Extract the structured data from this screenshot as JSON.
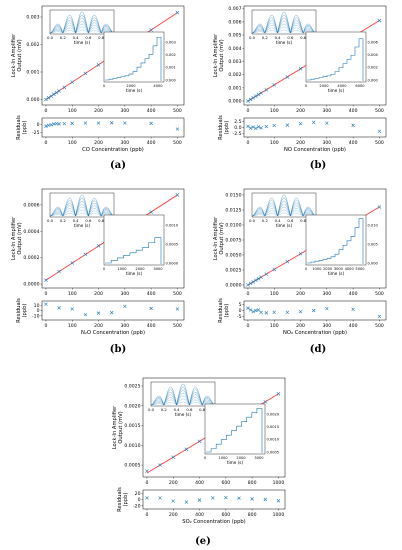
{
  "chart_data": [
    {
      "id": "a",
      "type": "scatter",
      "caption": "(a)",
      "ylabel_lines": [
        "Lock-In Amplifier",
        "Output (mV)"
      ],
      "xlabel": "CO Concentration (ppb)",
      "xticks": [
        "0",
        "100",
        "200",
        "300",
        "400",
        "500"
      ],
      "yticks": [
        "0.000",
        "0.001",
        "0.002",
        "0.003"
      ],
      "xlim": [
        -15,
        525
      ],
      "ylim": [
        -0.0002,
        0.0034
      ],
      "points_x": [
        0,
        10,
        20,
        30,
        40,
        50,
        70,
        100,
        150,
        200,
        250,
        300,
        400,
        500
      ],
      "points_y": [
        0.0,
        6e-05,
        0.00012,
        0.00019,
        0.00025,
        0.00031,
        0.00044,
        0.00063,
        0.00095,
        0.00126,
        0.00158,
        0.0019,
        0.00253,
        0.00316
      ],
      "fit": [
        [
          0,
          0.0
        ],
        [
          500,
          0.00316
        ]
      ],
      "residuals_ylabel_lines": [
        "Residuals",
        "(ppb)"
      ],
      "residuals_yticks": [
        "0",
        "-25"
      ],
      "residuals_ylim": [
        -40,
        20
      ],
      "residuals": [
        -6,
        -3,
        -1,
        1,
        2,
        1,
        2,
        3,
        4,
        4,
        5,
        4,
        3,
        -15
      ],
      "inset_trace": {
        "xlabel": "time (s)",
        "xticks": [
          "0.0",
          "0.2",
          "0.4",
          "0.6",
          "0.8",
          "1.0"
        ]
      },
      "inset_steps": {
        "xlabel": "time (s)",
        "xticks": [
          "0",
          "2000",
          "4000"
        ],
        "yticks": [
          "0.000",
          "0.001",
          "0.002",
          "0.003"
        ],
        "ymax": 0.0034
      }
    },
    {
      "id": "b1",
      "type": "scatter",
      "caption": "(b)",
      "ylabel_lines": [
        "Lock-In Amplifier",
        "Output (mV)"
      ],
      "xlabel": "NO Concentration (ppb)",
      "xticks": [
        "0",
        "100",
        "200",
        "300",
        "400",
        "500"
      ],
      "yticks": [
        "0.000",
        "0.001",
        "0.002",
        "0.003",
        "0.004",
        "0.005",
        "0.006",
        "0.007"
      ],
      "xlim": [
        -15,
        525
      ],
      "ylim": [
        -0.0003,
        0.0072
      ],
      "points_x": [
        0,
        10,
        20,
        30,
        40,
        50,
        70,
        100,
        150,
        200,
        250,
        300,
        400,
        500
      ],
      "points_y": [
        0.0,
        0.00012,
        0.00024,
        0.00037,
        0.00049,
        0.00061,
        0.00085,
        0.00122,
        0.00183,
        0.00244,
        0.00305,
        0.00366,
        0.00488,
        0.0061
      ],
      "fit": [
        [
          0,
          0.0
        ],
        [
          500,
          0.0061
        ]
      ],
      "residuals_ylabel_lines": [
        "Residuals",
        "(ppb)"
      ],
      "residuals_yticks": [
        "2.5",
        "0.0",
        "-2.5"
      ],
      "residuals_ylim": [
        -4,
        4
      ],
      "residuals": [
        0.5,
        -0.3,
        0.2,
        -0.4,
        0.3,
        -0.2,
        0.4,
        0.8,
        1.0,
        1.6,
        2.2,
        1.8,
        0.9,
        -1.6
      ],
      "inset_trace": {
        "xlabel": "time (s)",
        "xticks": [
          "0.0",
          "0.2",
          "0.4",
          "0.6",
          "0.8",
          "1.0"
        ]
      },
      "inset_steps": {
        "xlabel": "time (s)",
        "xticks": [
          "0",
          "2000",
          "4000",
          "6000"
        ],
        "yticks": [
          "0.000",
          "0.002",
          "0.004",
          "0.006"
        ],
        "ymax": 0.0068
      }
    },
    {
      "id": "b2",
      "type": "scatter",
      "caption": "(b)",
      "ylabel_lines": [
        "Lock-In Amplifier",
        "Output (mV)"
      ],
      "xlabel": "N₂O Concentration (ppb)",
      "xticks": [
        "0",
        "100",
        "200",
        "300",
        "400",
        "500"
      ],
      "yticks": [
        "0.0000",
        "0.0002",
        "0.0004",
        "0.0006"
      ],
      "xlim": [
        -15,
        525
      ],
      "ylim": [
        -3e-05,
        0.00072
      ],
      "points_x": [
        0,
        50,
        100,
        150,
        200,
        250,
        300,
        400,
        500
      ],
      "points_y": [
        3e-05,
        9.5e-05,
        0.00016,
        0.000225,
        0.00029,
        0.000355,
        0.00042,
        0.000545,
        0.000675
      ],
      "fit": [
        [
          0,
          3e-05
        ],
        [
          500,
          0.000675
        ]
      ],
      "residuals_ylabel_lines": [
        "Residuals",
        "(ppb)"
      ],
      "residuals_yticks": [
        "10",
        "0",
        "-10"
      ],
      "residuals_ylim": [
        -18,
        18
      ],
      "residuals": [
        12,
        5,
        3,
        -8,
        -5,
        -4,
        8,
        4,
        3
      ],
      "inset_trace": {
        "xlabel": "time (s)",
        "xticks": [
          "0.0",
          "0.2",
          "0.4",
          "0.6",
          "0.8",
          "1.0"
        ]
      },
      "inset_steps": {
        "xlabel": "time (s)",
        "xticks": [
          "0",
          "1000",
          "2000",
          "3000"
        ],
        "yticks": [
          "0.0000",
          "0.0005",
          "0.0010"
        ],
        "ymax": 0.0012
      }
    },
    {
      "id": "d",
      "type": "scatter",
      "caption": "(d)",
      "ylabel_lines": [
        "Lock-In Amplifier",
        "Output (mV)"
      ],
      "xlabel": "NO₂ Concentration (ppb)",
      "xticks": [
        "0",
        "100",
        "200",
        "300",
        "400",
        "500"
      ],
      "yticks": [
        "0.0000",
        "0.0025",
        "0.0050",
        "0.0075",
        "0.0100",
        "0.0125",
        "0.0150"
      ],
      "xlim": [
        -15,
        525
      ],
      "ylim": [
        -0.0005,
        0.016
      ],
      "points_x": [
        0,
        10,
        20,
        30,
        40,
        50,
        70,
        100,
        150,
        200,
        250,
        300,
        400,
        500
      ],
      "points_y": [
        0.0,
        0.00026,
        0.00052,
        0.00078,
        0.00104,
        0.0013,
        0.00182,
        0.0026,
        0.0039,
        0.0052,
        0.0065,
        0.0078,
        0.0104,
        0.013
      ],
      "fit": [
        [
          0,
          0.0
        ],
        [
          500,
          0.013
        ]
      ],
      "residuals_ylabel_lines": [
        "Residuals",
        "(ppb)"
      ],
      "residuals_yticks": [
        "5",
        "0",
        "-5"
      ],
      "residuals_ylim": [
        -8,
        8
      ],
      "residuals": [
        2,
        0.5,
        -1,
        0,
        0.5,
        -1.5,
        -2,
        -1.5,
        -1.5,
        -1,
        0,
        1.5,
        1,
        -5
      ],
      "inset_trace": {
        "xlabel": "time (s)",
        "xticks": [
          "0.0",
          "0.2",
          "0.4",
          "0.6",
          "0.8",
          "1.0"
        ]
      },
      "inset_steps": {
        "xlabel": "time (s)",
        "xticks": [
          "0",
          "1000",
          "2000",
          "3000",
          "4000",
          "5000"
        ],
        "yticks": [
          "0.000",
          "0.005",
          "0.010"
        ],
        "ymax": 0.0135
      }
    },
    {
      "id": "e",
      "type": "scatter",
      "caption": "(e)",
      "ylabel_lines": [
        "Lock-In Amplifier",
        "Output (mV)"
      ],
      "xlabel": "SO₂ Concentration (ppb)",
      "xticks": [
        "0",
        "200",
        "400",
        "600",
        "800",
        "1000"
      ],
      "yticks": [
        "0.0005",
        "0.0010",
        "0.0015",
        "0.0020",
        "0.0025"
      ],
      "xlim": [
        -30,
        1050
      ],
      "ylim": [
        0.0002,
        0.0027
      ],
      "points_x": [
        0,
        100,
        200,
        300,
        400,
        500,
        600,
        700,
        800,
        900,
        1000
      ],
      "points_y": [
        0.00035,
        0.0005,
        0.0007,
        0.0009,
        0.0011,
        0.0013,
        0.0015,
        0.0017,
        0.0019,
        0.0021,
        0.0023
      ],
      "fit": [
        [
          0,
          0.0003
        ],
        [
          1000,
          0.0023
        ]
      ],
      "residuals_ylabel_lines": [
        "Residuals",
        "(ppb)"
      ],
      "residuals_yticks": [
        "20",
        "0",
        "-20"
      ],
      "residuals_ylim": [
        -30,
        30
      ],
      "residuals": [
        5,
        5,
        -5,
        -8,
        -2,
        5,
        6,
        4,
        2,
        0,
        -4
      ],
      "inset_trace": {
        "xlabel": "time (s)",
        "xticks": [
          "0.0",
          "0.2",
          "0.4",
          "0.6",
          "0.8",
          "1.0"
        ]
      },
      "inset_steps": {
        "xlabel": "time (s)",
        "xticks": [
          "0",
          "1000",
          "2000",
          "3000"
        ],
        "yticks": [
          "0.0005",
          "0.0010",
          "0.0015",
          "0.0020"
        ],
        "ymax": 0.0024
      }
    }
  ],
  "colors": {
    "points": "#1f77b4",
    "fit": "#ff4040",
    "trace": "#1f77b4",
    "steps": "#1f77b4"
  }
}
